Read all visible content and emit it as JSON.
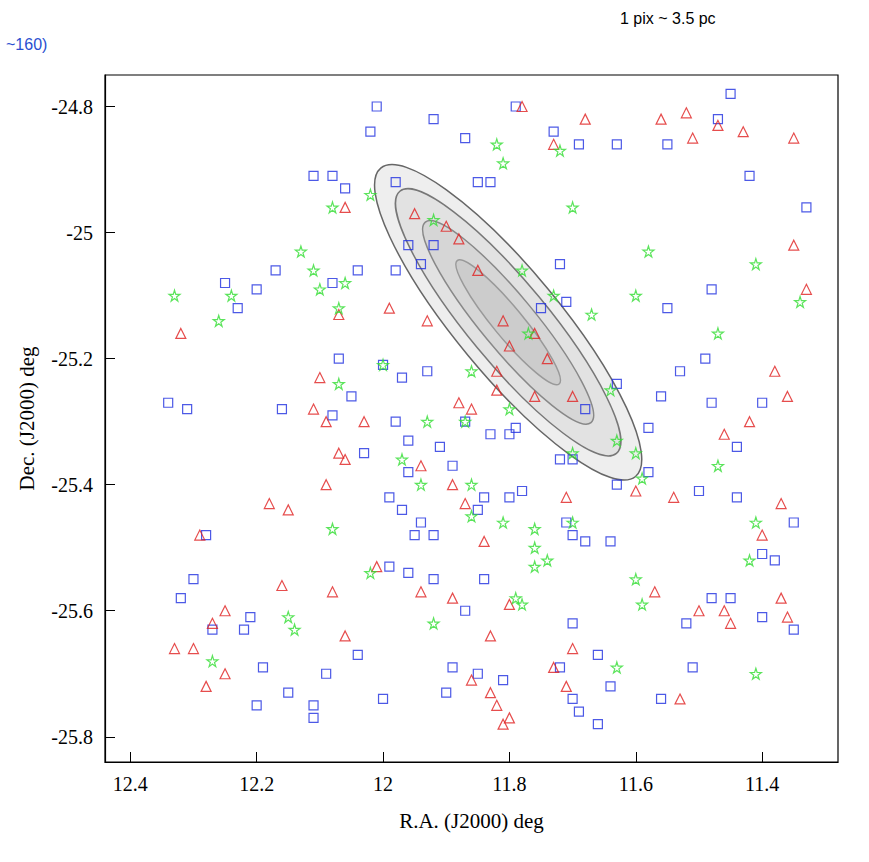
{
  "chart_data": {
    "type": "scatter",
    "x_label": "R.A. (J2000) deg",
    "y_label": "Dec. (J2000) deg",
    "annotations": [
      "1 pix ~ 3.5 pc",
      "~160)"
    ],
    "xlim": [
      12.44,
      11.28
    ],
    "ylim": [
      -25.84,
      -24.75
    ],
    "xticks": [
      12.4,
      12.2,
      12,
      11.8,
      11.6,
      11.4
    ],
    "yticks": [
      -24.8,
      -25,
      -25.2,
      -25.4,
      -25.6,
      -25.8
    ],
    "grid": false,
    "series": [
      {
        "color": "#1f2fe0",
        "marker": "square",
        "values": [
          [
            12.01,
            -24.8
          ],
          [
            12.02,
            -24.84
          ],
          [
            11.92,
            -24.82
          ],
          [
            11.87,
            -24.85
          ],
          [
            11.79,
            -24.8
          ],
          [
            11.73,
            -24.84
          ],
          [
            11.69,
            -24.86
          ],
          [
            11.63,
            -24.86
          ],
          [
            11.55,
            -24.86
          ],
          [
            11.45,
            -24.78
          ],
          [
            11.47,
            -24.82
          ],
          [
            11.42,
            -24.91
          ],
          [
            11.33,
            -24.96
          ],
          [
            12.11,
            -24.91
          ],
          [
            12.08,
            -24.91
          ],
          [
            12.06,
            -24.93
          ],
          [
            11.98,
            -24.92
          ],
          [
            11.85,
            -24.92
          ],
          [
            11.83,
            -24.92
          ],
          [
            11.96,
            -25.02
          ],
          [
            11.92,
            -25.02
          ],
          [
            11.94,
            -25.05
          ],
          [
            11.98,
            -25.06
          ],
          [
            12.04,
            -25.06
          ],
          [
            12.08,
            -25.08
          ],
          [
            12.17,
            -25.06
          ],
          [
            12.2,
            -25.09
          ],
          [
            12.25,
            -25.08
          ],
          [
            12.23,
            -25.12
          ],
          [
            11.72,
            -25.05
          ],
          [
            11.71,
            -25.11
          ],
          [
            11.75,
            -25.12
          ],
          [
            11.55,
            -25.12
          ],
          [
            11.48,
            -25.09
          ],
          [
            12.07,
            -25.2
          ],
          [
            12.0,
            -25.21
          ],
          [
            11.97,
            -25.23
          ],
          [
            11.93,
            -25.22
          ],
          [
            12.05,
            -25.26
          ],
          [
            11.98,
            -25.3
          ],
          [
            11.96,
            -25.33
          ],
          [
            11.91,
            -25.34
          ],
          [
            11.87,
            -25.3
          ],
          [
            11.83,
            -25.32
          ],
          [
            11.8,
            -25.32
          ],
          [
            11.79,
            -25.31
          ],
          [
            12.08,
            -25.29
          ],
          [
            12.03,
            -25.35
          ],
          [
            12.34,
            -25.27
          ],
          [
            12.31,
            -25.28
          ],
          [
            12.16,
            -25.28
          ],
          [
            11.68,
            -25.28
          ],
          [
            11.63,
            -25.24
          ],
          [
            11.56,
            -25.26
          ],
          [
            11.53,
            -25.22
          ],
          [
            11.49,
            -25.2
          ],
          [
            11.48,
            -25.27
          ],
          [
            11.44,
            -25.34
          ],
          [
            11.4,
            -25.27
          ],
          [
            11.58,
            -25.31
          ],
          [
            11.7,
            -25.36
          ],
          [
            11.72,
            -25.36
          ],
          [
            11.96,
            -25.38
          ],
          [
            11.89,
            -25.37
          ],
          [
            11.84,
            -25.42
          ],
          [
            11.78,
            -25.41
          ],
          [
            11.63,
            -25.4
          ],
          [
            11.58,
            -25.38
          ],
          [
            11.5,
            -25.41
          ],
          [
            11.44,
            -25.42
          ],
          [
            11.35,
            -25.46
          ],
          [
            11.99,
            -25.42
          ],
          [
            11.97,
            -25.44
          ],
          [
            11.94,
            -25.46
          ],
          [
            11.95,
            -25.48
          ],
          [
            11.92,
            -25.48
          ],
          [
            11.85,
            -25.44
          ],
          [
            11.8,
            -25.42
          ],
          [
            11.71,
            -25.46
          ],
          [
            11.7,
            -25.48
          ],
          [
            11.68,
            -25.49
          ],
          [
            11.64,
            -25.49
          ],
          [
            11.84,
            -25.55
          ],
          [
            11.92,
            -25.55
          ],
          [
            11.96,
            -25.54
          ],
          [
            11.99,
            -25.53
          ],
          [
            11.87,
            -25.6
          ],
          [
            12.28,
            -25.48
          ],
          [
            12.3,
            -25.55
          ],
          [
            12.32,
            -25.58
          ],
          [
            11.4,
            -25.51
          ],
          [
            11.38,
            -25.52
          ],
          [
            11.48,
            -25.58
          ],
          [
            11.45,
            -25.58
          ],
          [
            11.4,
            -25.61
          ],
          [
            11.35,
            -25.63
          ],
          [
            11.52,
            -25.62
          ],
          [
            11.7,
            -25.62
          ],
          [
            11.66,
            -25.67
          ],
          [
            12.21,
            -25.61
          ],
          [
            12.27,
            -25.63
          ],
          [
            12.22,
            -25.63
          ],
          [
            12.19,
            -25.69
          ],
          [
            12.15,
            -25.73
          ],
          [
            12.09,
            -25.7
          ],
          [
            12.04,
            -25.67
          ],
          [
            12.2,
            -25.75
          ],
          [
            12.11,
            -25.75
          ],
          [
            12.11,
            -25.77
          ],
          [
            12.0,
            -25.74
          ],
          [
            11.9,
            -25.73
          ],
          [
            11.89,
            -25.69
          ],
          [
            11.85,
            -25.7
          ],
          [
            11.81,
            -25.71
          ],
          [
            11.7,
            -25.74
          ],
          [
            11.69,
            -25.76
          ],
          [
            11.66,
            -25.78
          ],
          [
            11.64,
            -25.72
          ],
          [
            11.51,
            -25.69
          ],
          [
            11.56,
            -25.74
          ],
          [
            11.72,
            -25.69
          ]
        ]
      },
      {
        "color": "#e02020",
        "marker": "triangle",
        "values": [
          [
            11.78,
            -24.8
          ],
          [
            11.68,
            -24.82
          ],
          [
            11.73,
            -24.86
          ],
          [
            11.56,
            -24.82
          ],
          [
            11.52,
            -24.81
          ],
          [
            11.51,
            -24.85
          ],
          [
            11.47,
            -24.83
          ],
          [
            11.43,
            -24.84
          ],
          [
            11.35,
            -24.85
          ],
          [
            12.06,
            -24.96
          ],
          [
            11.95,
            -24.97
          ],
          [
            11.9,
            -24.99
          ],
          [
            11.88,
            -25.01
          ],
          [
            11.85,
            -25.06
          ],
          [
            11.81,
            -25.14
          ],
          [
            11.76,
            -25.16
          ],
          [
            11.8,
            -25.18
          ],
          [
            11.93,
            -25.14
          ],
          [
            11.99,
            -25.12
          ],
          [
            12.07,
            -25.13
          ],
          [
            12.32,
            -25.16
          ],
          [
            11.35,
            -25.02
          ],
          [
            11.33,
            -25.09
          ],
          [
            11.38,
            -25.22
          ],
          [
            11.36,
            -25.26
          ],
          [
            11.42,
            -25.3
          ],
          [
            11.46,
            -25.32
          ],
          [
            11.37,
            -25.43
          ],
          [
            11.54,
            -25.42
          ],
          [
            11.4,
            -25.48
          ],
          [
            12.1,
            -25.23
          ],
          [
            12.11,
            -25.28
          ],
          [
            12.09,
            -25.3
          ],
          [
            12.03,
            -25.3
          ],
          [
            12.06,
            -25.36
          ],
          [
            12.07,
            -25.35
          ],
          [
            12.09,
            -25.4
          ],
          [
            12.15,
            -25.44
          ],
          [
            12.18,
            -25.43
          ],
          [
            11.94,
            -25.37
          ],
          [
            11.89,
            -25.4
          ],
          [
            11.87,
            -25.43
          ],
          [
            11.84,
            -25.49
          ],
          [
            11.71,
            -25.42
          ],
          [
            11.6,
            -25.41
          ],
          [
            11.82,
            -25.25
          ],
          [
            11.88,
            -25.27
          ],
          [
            11.86,
            -25.28
          ],
          [
            11.76,
            -25.26
          ],
          [
            11.7,
            -25.26
          ],
          [
            11.74,
            -25.2
          ],
          [
            11.82,
            -25.22
          ],
          [
            12.29,
            -25.48
          ],
          [
            12.16,
            -25.56
          ],
          [
            12.08,
            -25.57
          ],
          [
            12.01,
            -25.53
          ],
          [
            11.94,
            -25.57
          ],
          [
            11.89,
            -25.58
          ],
          [
            11.83,
            -25.64
          ],
          [
            11.8,
            -25.59
          ],
          [
            11.7,
            -25.66
          ],
          [
            11.73,
            -25.69
          ],
          [
            11.71,
            -25.72
          ],
          [
            12.25,
            -25.6
          ],
          [
            12.27,
            -25.62
          ],
          [
            12.3,
            -25.66
          ],
          [
            12.33,
            -25.66
          ],
          [
            12.25,
            -25.7
          ],
          [
            12.28,
            -25.72
          ],
          [
            12.06,
            -25.64
          ],
          [
            11.86,
            -25.71
          ],
          [
            11.83,
            -25.73
          ],
          [
            11.82,
            -25.75
          ],
          [
            11.8,
            -25.77
          ],
          [
            11.81,
            -25.78
          ],
          [
            11.53,
            -25.74
          ],
          [
            11.46,
            -25.6
          ],
          [
            11.5,
            -25.6
          ],
          [
            11.57,
            -25.57
          ],
          [
            11.45,
            -25.62
          ],
          [
            11.37,
            -25.58
          ],
          [
            11.36,
            -25.61
          ]
        ]
      },
      {
        "color": "#33dd33",
        "marker": "star",
        "values": [
          [
            11.72,
            -24.87
          ],
          [
            11.82,
            -24.86
          ],
          [
            11.81,
            -24.89
          ],
          [
            12.02,
            -24.94
          ],
          [
            12.08,
            -24.96
          ],
          [
            11.92,
            -24.98
          ],
          [
            11.7,
            -24.96
          ],
          [
            11.58,
            -25.03
          ],
          [
            11.41,
            -25.05
          ],
          [
            11.34,
            -25.11
          ],
          [
            12.13,
            -25.03
          ],
          [
            12.11,
            -25.06
          ],
          [
            12.1,
            -25.09
          ],
          [
            12.06,
            -25.08
          ],
          [
            12.07,
            -25.12
          ],
          [
            12.24,
            -25.1
          ],
          [
            12.33,
            -25.1
          ],
          [
            12.26,
            -25.14
          ],
          [
            11.78,
            -25.06
          ],
          [
            11.73,
            -25.1
          ],
          [
            11.77,
            -25.16
          ],
          [
            11.6,
            -25.1
          ],
          [
            11.67,
            -25.13
          ],
          [
            11.47,
            -25.16
          ],
          [
            12.0,
            -25.21
          ],
          [
            12.07,
            -25.24
          ],
          [
            11.86,
            -25.22
          ],
          [
            11.87,
            -25.3
          ],
          [
            11.8,
            -25.28
          ],
          [
            11.64,
            -25.25
          ],
          [
            11.63,
            -25.33
          ],
          [
            11.7,
            -25.35
          ],
          [
            11.6,
            -25.35
          ],
          [
            11.59,
            -25.39
          ],
          [
            11.97,
            -25.36
          ],
          [
            11.94,
            -25.4
          ],
          [
            11.86,
            -25.4
          ],
          [
            11.47,
            -25.37
          ],
          [
            11.41,
            -25.46
          ],
          [
            11.42,
            -25.52
          ],
          [
            11.81,
            -25.46
          ],
          [
            11.76,
            -25.47
          ],
          [
            11.7,
            -25.46
          ],
          [
            11.76,
            -25.5
          ],
          [
            11.74,
            -25.52
          ],
          [
            11.76,
            -25.53
          ],
          [
            11.86,
            -25.45
          ],
          [
            12.08,
            -25.47
          ],
          [
            12.02,
            -25.54
          ],
          [
            11.79,
            -25.58
          ],
          [
            11.78,
            -25.59
          ],
          [
            11.92,
            -25.62
          ],
          [
            11.6,
            -25.55
          ],
          [
            11.59,
            -25.59
          ],
          [
            12.15,
            -25.61
          ],
          [
            12.14,
            -25.63
          ],
          [
            12.27,
            -25.68
          ],
          [
            11.63,
            -25.69
          ],
          [
            11.41,
            -25.7
          ],
          [
            11.93,
            -25.3
          ]
        ]
      }
    ]
  }
}
